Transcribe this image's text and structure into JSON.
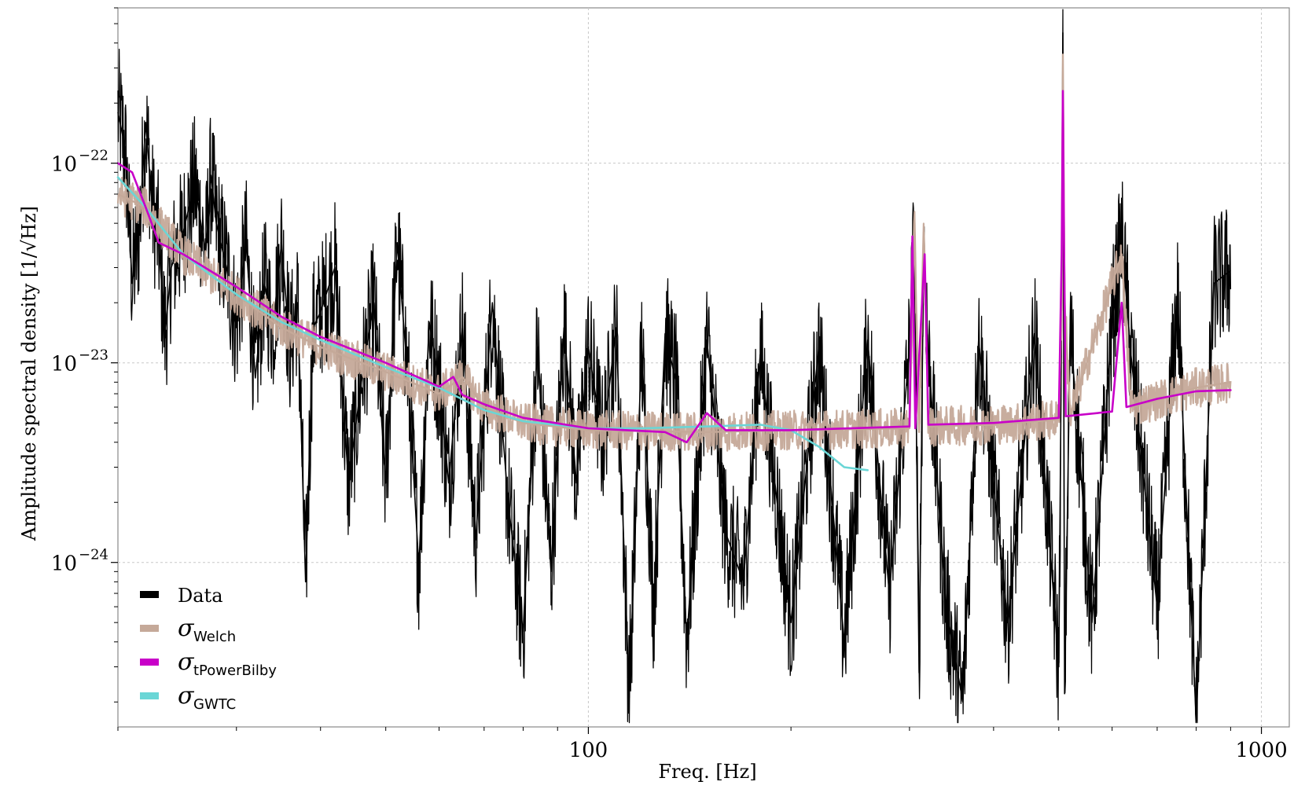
{
  "chart_data": {
    "type": "line",
    "xlabel": "Freq. [Hz]",
    "ylabel": "Amplitude spectral density [1/√Hz]",
    "x_scale": "log",
    "y_scale": "log",
    "xlim": [
      20,
      1100
    ],
    "ylim": [
      1.5e-25,
      6e-22
    ],
    "grid": true,
    "legend_position": "lower-left",
    "x_ticks": [
      {
        "value": 100,
        "label": "100"
      },
      {
        "value": 1000,
        "label": "1000"
      }
    ],
    "y_ticks": [
      {
        "value": 1e-22,
        "base": "10",
        "exp": "−22"
      },
      {
        "value": 1e-23,
        "base": "10",
        "exp": "−23"
      },
      {
        "value": 1e-24,
        "base": "10",
        "exp": "−24"
      }
    ],
    "series": [
      {
        "name": "Data",
        "symbol": "",
        "subscript": "",
        "color": "#000000",
        "kind": "noisy",
        "points": [
          [
            20,
            1.8e-22
          ],
          [
            20.5,
            1.2e-22
          ],
          [
            21,
            2.5e-23
          ],
          [
            21.5,
            4.5e-23
          ],
          [
            22,
            1.6e-22
          ],
          [
            22.5,
            6e-23
          ],
          [
            23,
            4e-23
          ],
          [
            23.5,
            1.4e-23
          ],
          [
            24,
            3e-23
          ],
          [
            25,
            4.5e-23
          ],
          [
            26,
            8e-23
          ],
          [
            27,
            3.5e-23
          ],
          [
            27.5,
            8.7e-23
          ],
          [
            28,
            5e-23
          ],
          [
            29,
            3e-23
          ],
          [
            30,
            1.5e-23
          ],
          [
            31,
            4e-23
          ],
          [
            32,
            8.4e-24
          ],
          [
            33,
            2.5e-23
          ],
          [
            34,
            1.5e-23
          ],
          [
            35,
            4e-23
          ],
          [
            36,
            1.2e-23
          ],
          [
            37,
            2e-23
          ],
          [
            38,
            8e-25
          ],
          [
            39,
            1.5e-23
          ],
          [
            40,
            1.8e-23
          ],
          [
            42,
            3e-23
          ],
          [
            44,
            2.5e-24
          ],
          [
            46,
            8e-24
          ],
          [
            48,
            2e-23
          ],
          [
            50,
            2.5e-24
          ],
          [
            52,
            4e-23
          ],
          [
            54,
            8e-24
          ],
          [
            56,
            9.5e-25
          ],
          [
            58,
            1.6e-23
          ],
          [
            60,
            8e-24
          ],
          [
            62,
            2.5e-24
          ],
          [
            65,
            1.5e-23
          ],
          [
            68,
            1.3e-24
          ],
          [
            72,
            2e-23
          ],
          [
            76,
            2e-24
          ],
          [
            80,
            4.5e-25
          ],
          [
            84,
            1.2e-23
          ],
          [
            88,
            9e-25
          ],
          [
            92,
            1.5e-23
          ],
          [
            96,
            2.5e-24
          ],
          [
            100,
            1.2e-23
          ],
          [
            105,
            4e-24
          ],
          [
            110,
            1.5e-23
          ],
          [
            115,
            2.1e-25
          ],
          [
            120,
            1.2e-23
          ],
          [
            125,
            6e-25
          ],
          [
            130,
            1.4e-23
          ],
          [
            135,
            8e-24
          ],
          [
            140,
            4e-25
          ],
          [
            150,
            1.3e-23
          ],
          [
            160,
            1.4e-24
          ],
          [
            170,
            8e-25
          ],
          [
            180,
            1.1e-23
          ],
          [
            200,
            5e-25
          ],
          [
            220,
            1.2e-23
          ],
          [
            240,
            4e-25
          ],
          [
            260,
            1.3e-23
          ],
          [
            280,
            7e-25
          ],
          [
            300,
            1.2e-23
          ],
          [
            305,
            4.5e-23
          ],
          [
            310,
            2.8e-25
          ],
          [
            315,
            4e-23
          ],
          [
            320,
            1.1e-23
          ],
          [
            340,
            6e-25
          ],
          [
            360,
            2e-25
          ],
          [
            380,
            1.3e-23
          ],
          [
            420,
            5e-25
          ],
          [
            460,
            1.4e-23
          ],
          [
            500,
            3e-25
          ],
          [
            505,
            1.8e-23
          ],
          [
            507,
            4.5e-22
          ],
          [
            510,
            2.2e-25
          ],
          [
            520,
            1.5e-23
          ],
          [
            560,
            5e-25
          ],
          [
            600,
            1.6e-23
          ],
          [
            620,
            4.2e-23
          ],
          [
            640,
            1.1e-23
          ],
          [
            700,
            6e-25
          ],
          [
            750,
            2.2e-23
          ],
          [
            800,
            1.6e-25
          ],
          [
            850,
            2.5e-23
          ],
          [
            900,
            2.9e-23
          ]
        ]
      },
      {
        "name": "Welch",
        "symbol": "σ",
        "subscript": "Welch",
        "color": "#c5a999",
        "kind": "noisy",
        "points": [
          [
            20,
            7e-23
          ],
          [
            22,
            6e-23
          ],
          [
            25,
            3.5e-23
          ],
          [
            30,
            2.2e-23
          ],
          [
            35,
            1.5e-23
          ],
          [
            40,
            1.2e-23
          ],
          [
            50,
            9e-24
          ],
          [
            60,
            7e-24
          ],
          [
            65,
            8.5e-24
          ],
          [
            70,
            6e-24
          ],
          [
            80,
            5e-24
          ],
          [
            100,
            4.6e-24
          ],
          [
            150,
            4.5e-24
          ],
          [
            200,
            4.6e-24
          ],
          [
            300,
            4.7e-24
          ],
          [
            305,
            5e-23
          ],
          [
            310,
            4.5e-24
          ],
          [
            315,
            4.5e-23
          ],
          [
            320,
            4.8e-24
          ],
          [
            400,
            4.9e-24
          ],
          [
            500,
            5.2e-24
          ],
          [
            505,
            2e-23
          ],
          [
            507,
            3.5e-22
          ],
          [
            510,
            2e-23
          ],
          [
            520,
            5.5e-24
          ],
          [
            620,
            3.5e-23
          ],
          [
            640,
            6e-24
          ],
          [
            700,
            6.5e-24
          ],
          [
            800,
            7.5e-24
          ],
          [
            900,
            8e-24
          ]
        ]
      },
      {
        "name": "tPowerBilby",
        "symbol": "σ",
        "subscript": "tPowerBilby",
        "color": "#c800c8",
        "kind": "smooth",
        "points": [
          [
            20,
            1e-22
          ],
          [
            21,
            9e-23
          ],
          [
            22,
            6e-23
          ],
          [
            23,
            4e-23
          ],
          [
            25,
            3.5e-23
          ],
          [
            30,
            2.4e-23
          ],
          [
            35,
            1.7e-23
          ],
          [
            40,
            1.35e-23
          ],
          [
            50,
            1e-23
          ],
          [
            60,
            7.6e-24
          ],
          [
            63,
            8.5e-24
          ],
          [
            65,
            6.9e-24
          ],
          [
            70,
            6.2e-24
          ],
          [
            80,
            5.3e-24
          ],
          [
            100,
            4.7e-24
          ],
          [
            130,
            4.5e-24
          ],
          [
            140,
            4e-24
          ],
          [
            150,
            5.6e-24
          ],
          [
            160,
            4.6e-24
          ],
          [
            200,
            4.6e-24
          ],
          [
            300,
            4.8e-24
          ],
          [
            303,
            4.3e-23
          ],
          [
            306,
            4.7e-24
          ],
          [
            316,
            3.5e-23
          ],
          [
            320,
            4.9e-24
          ],
          [
            400,
            5e-24
          ],
          [
            500,
            5.3e-24
          ],
          [
            505,
            3.5e-23
          ],
          [
            507,
            2.3e-22
          ],
          [
            509,
            3.8e-23
          ],
          [
            512,
            5.4e-24
          ],
          [
            600,
            5.7e-24
          ],
          [
            620,
            2e-23
          ],
          [
            630,
            6e-24
          ],
          [
            700,
            6.6e-24
          ],
          [
            800,
            7.2e-24
          ],
          [
            900,
            7.3e-24
          ]
        ]
      },
      {
        "name": "GWTC",
        "symbol": "σ",
        "subscript": "GWTC",
        "color": "#6ad6d6",
        "kind": "smooth",
        "points": [
          [
            20,
            8.5e-23
          ],
          [
            22,
            6e-23
          ],
          [
            25,
            3.5e-23
          ],
          [
            30,
            2.2e-23
          ],
          [
            35,
            1.6e-23
          ],
          [
            40,
            1.3e-23
          ],
          [
            50,
            9.5e-24
          ],
          [
            60,
            7.5e-24
          ],
          [
            70,
            5.8e-24
          ],
          [
            80,
            5.1e-24
          ],
          [
            100,
            4.7e-24
          ],
          [
            120,
            4.7e-24
          ],
          [
            150,
            4.8e-24
          ],
          [
            180,
            4.9e-24
          ],
          [
            200,
            4.6e-24
          ],
          [
            220,
            3.8e-24
          ],
          [
            240,
            3e-24
          ],
          [
            260,
            2.9e-24
          ]
        ]
      }
    ]
  }
}
